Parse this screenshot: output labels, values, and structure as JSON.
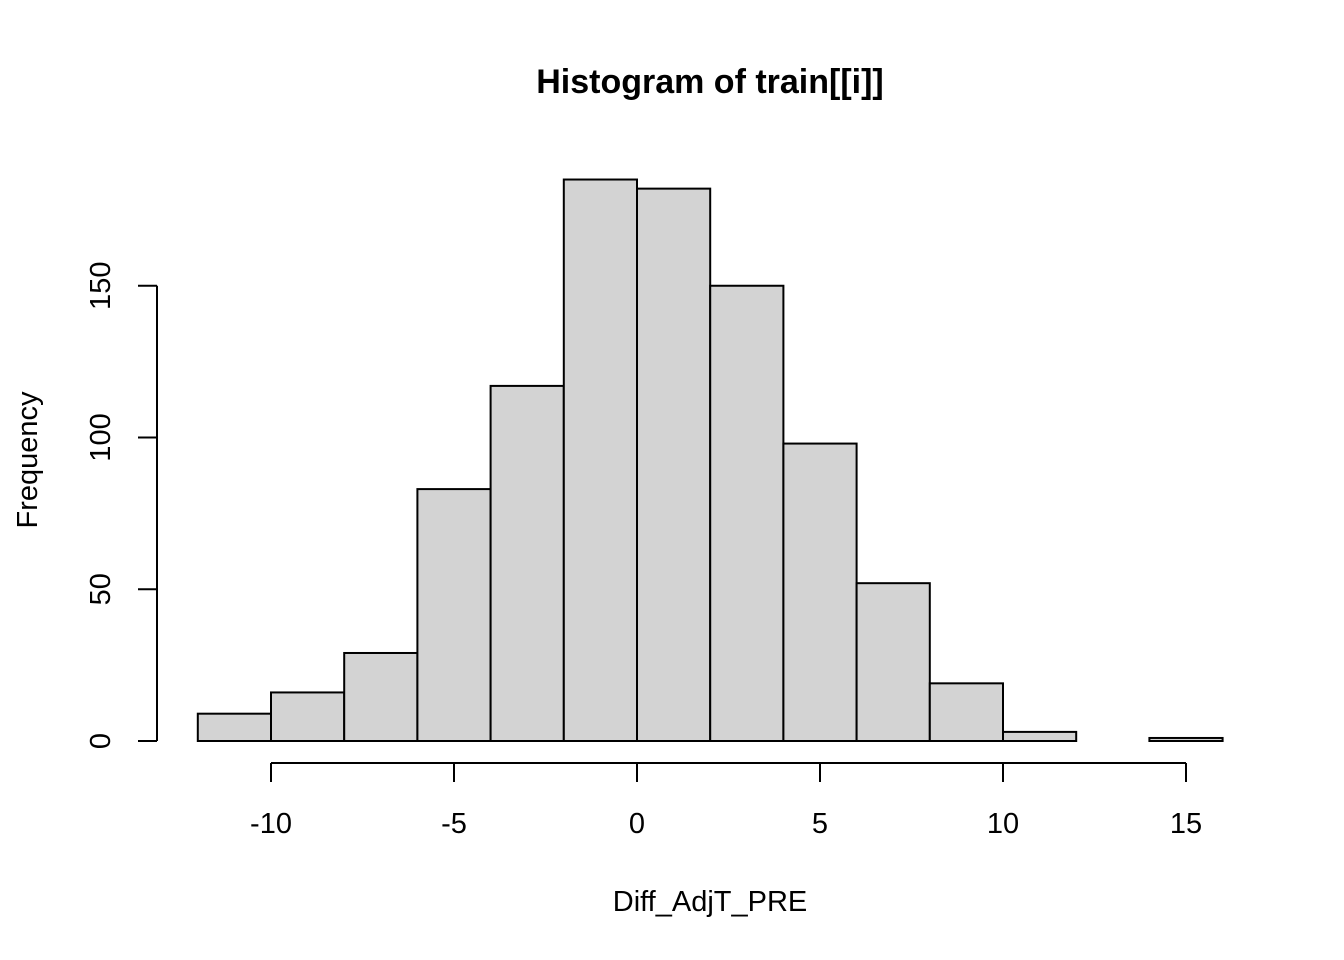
{
  "chart_data": {
    "type": "bar",
    "title": "Histogram of train[[i]]",
    "xlabel": "Diff_AdjT_PRE",
    "ylabel": "Frequency",
    "bins": [
      {
        "x0": -12,
        "x1": -10,
        "count": 9
      },
      {
        "x0": -10,
        "x1": -8,
        "count": 16
      },
      {
        "x0": -8,
        "x1": -6,
        "count": 29
      },
      {
        "x0": -6,
        "x1": -4,
        "count": 83
      },
      {
        "x0": -4,
        "x1": -2,
        "count": 117
      },
      {
        "x0": -2,
        "x1": 0,
        "count": 185
      },
      {
        "x0": 0,
        "x1": 2,
        "count": 182
      },
      {
        "x0": 2,
        "x1": 4,
        "count": 150
      },
      {
        "x0": 4,
        "x1": 6,
        "count": 98
      },
      {
        "x0": 6,
        "x1": 8,
        "count": 52
      },
      {
        "x0": 8,
        "x1": 10,
        "count": 19
      },
      {
        "x0": 10,
        "x1": 12,
        "count": 3
      },
      {
        "x0": 12,
        "x1": 14,
        "count": 0
      },
      {
        "x0": 14,
        "x1": 16,
        "count": 1
      }
    ],
    "xticks": [
      -10,
      -5,
      0,
      5,
      10,
      15
    ],
    "xtick_labels": [
      "-10",
      "-5",
      "0",
      "5",
      "10",
      "15"
    ],
    "yticks": [
      0,
      50,
      100,
      150
    ],
    "ytick_labels": [
      "0",
      "50",
      "100",
      "150"
    ],
    "xlim": [
      -12,
      16
    ],
    "ylim": [
      0,
      185
    ],
    "grid": false,
    "bar_fill": "#d3d3d3",
    "bar_stroke": "#000000"
  }
}
